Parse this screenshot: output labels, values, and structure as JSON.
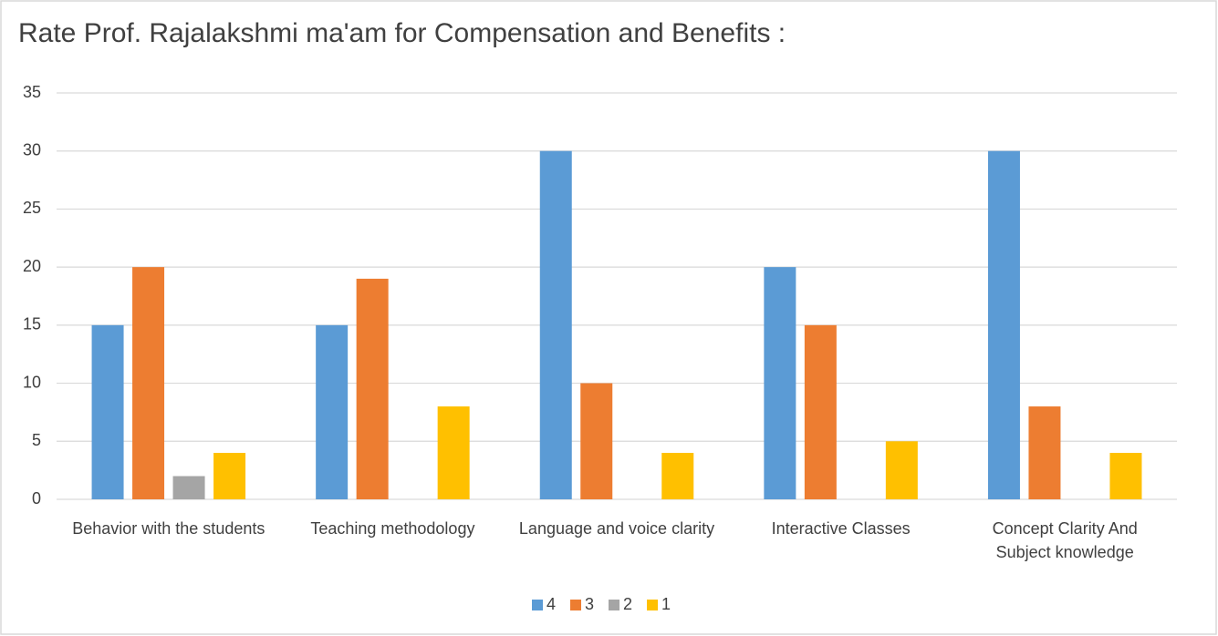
{
  "chart_data": {
    "type": "bar",
    "title": "Rate Prof. Rajalakshmi ma'am  for Compensation and Benefits :",
    "categories": [
      "Behavior with the students",
      "Teaching methodology",
      "Language and voice clarity",
      "Interactive Classes",
      "Concept Clarity And Subject knowledge"
    ],
    "series": [
      {
        "name": "4",
        "color": "#5b9bd5",
        "values": [
          15,
          15,
          30,
          20,
          30
        ]
      },
      {
        "name": "3",
        "color": "#ed7d31",
        "values": [
          20,
          19,
          10,
          15,
          8
        ]
      },
      {
        "name": "2",
        "color": "#a5a5a5",
        "values": [
          2,
          null,
          null,
          null,
          null
        ]
      },
      {
        "name": "1",
        "color": "#ffc000",
        "values": [
          4,
          8,
          4,
          5,
          4
        ]
      }
    ],
    "ylim": [
      0,
      35
    ],
    "yticks": [
      0,
      5,
      10,
      15,
      20,
      25,
      30,
      35
    ],
    "grid": true,
    "legend": "bottom"
  }
}
